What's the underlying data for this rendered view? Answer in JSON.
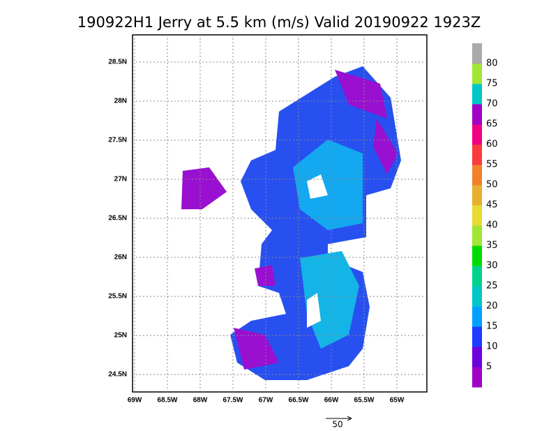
{
  "title": "190922H1 Jerry at 5.5 km (m/s) Valid 20190922  1923Z",
  "lat_labels": [
    "28.5N",
    "28N",
    "27.5N",
    "27N",
    "26.5N",
    "26N",
    "25.5N",
    "25N",
    "24.5N"
  ],
  "lon_labels": [
    "69W",
    "68.5W",
    "68W",
    "67.5W",
    "67W",
    "66.5W",
    "66W",
    "65.5W",
    "65W"
  ],
  "colorbar": {
    "labels": [
      5,
      10,
      15,
      20,
      25,
      30,
      35,
      40,
      45,
      50,
      55,
      60,
      65,
      70,
      75,
      80
    ],
    "colors": [
      "#a000c8",
      "#6e00dc",
      "#1e3cff",
      "#00a0ff",
      "#00c8c8",
      "#00d28c",
      "#00dc00",
      "#a0e632",
      "#e6dc32",
      "#e6af2d",
      "#f08228",
      "#fa3c3c",
      "#f00082",
      "#a000c8",
      "#00c8c8",
      "#a0e632",
      "#aaaaaa"
    ]
  },
  "reference_vector_label": "50"
}
